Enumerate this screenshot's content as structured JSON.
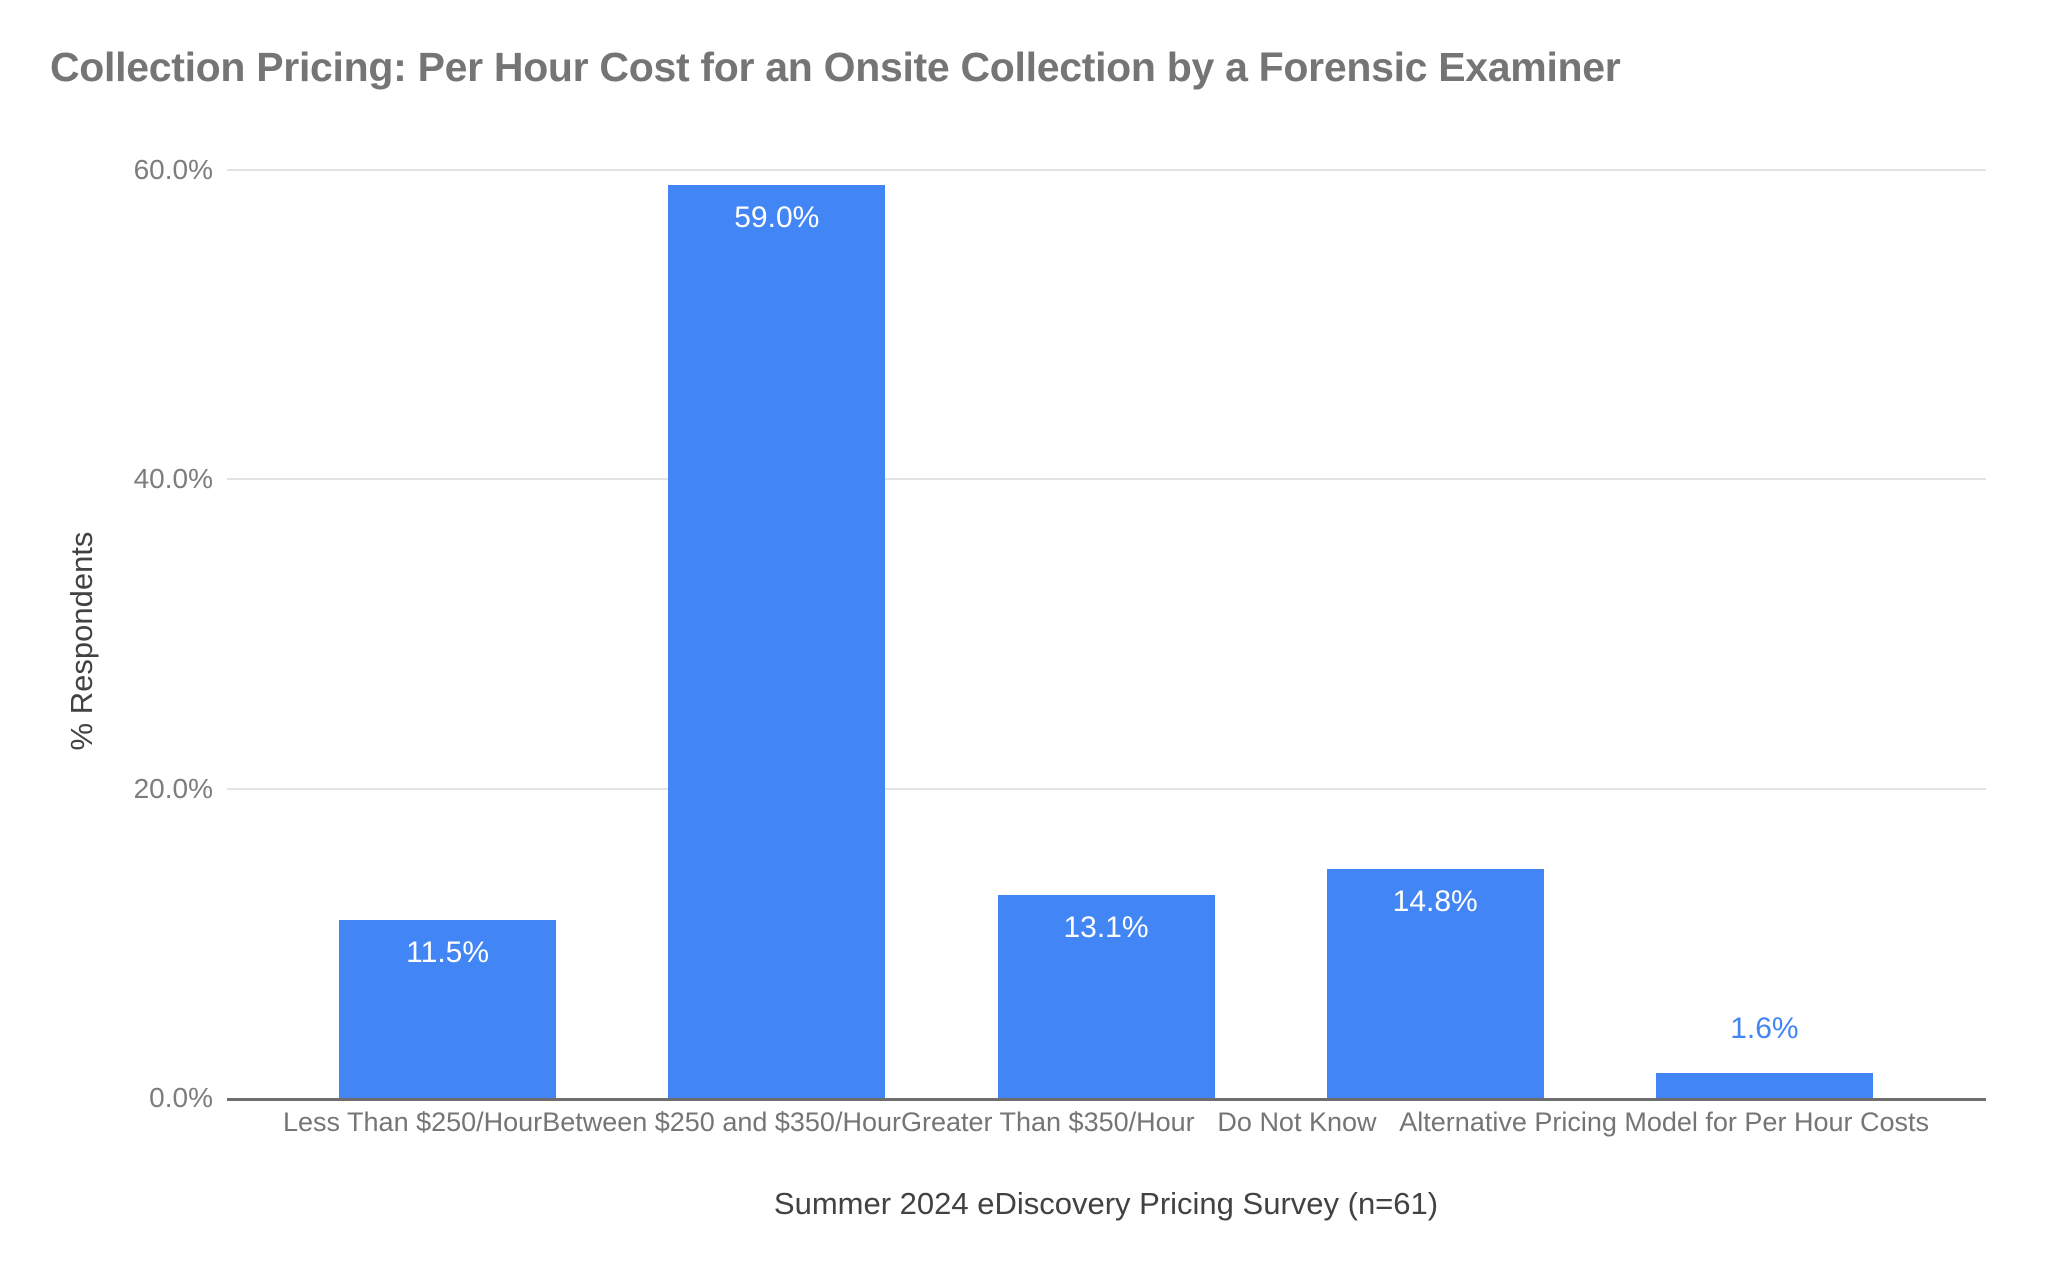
{
  "page": {
    "background": "#ffffff"
  },
  "chart_data": {
    "type": "bar",
    "title": "Collection Pricing: Per Hour Cost for an Onsite Collection by a Forensic Examiner",
    "xlabel": "Summer 2024 eDiscovery Pricing Survey (n=61)",
    "ylabel": "% Respondents",
    "categories": [
      "Less Than $250/Hour",
      "Between $250 and $350/Hour",
      "Greater Than $350/Hour",
      "Do Not Know",
      "Alternative Pricing Model for Per Hour Costs"
    ],
    "values": [
      11.5,
      59.0,
      13.1,
      14.8,
      1.6
    ],
    "value_labels": [
      "11.5%",
      "59.0%",
      "13.1%",
      "14.8%",
      "1.6%"
    ],
    "ylim": [
      0,
      60
    ],
    "yticks": [
      {
        "value": 60,
        "label": "60.0%"
      },
      {
        "value": 40,
        "label": "40.0%"
      },
      {
        "value": 20,
        "label": "20.0%"
      },
      {
        "value": 0,
        "label": "0.0%"
      }
    ],
    "grid": true,
    "legend": "none",
    "label_outside_threshold": 5,
    "colors": {
      "bar": "#4285F4",
      "title_text": "#757575",
      "tick_text": "#7d7d7d",
      "category_text": "#757575",
      "axis_title_text": "#424242",
      "gridline": "#e3e3e3",
      "axis_line": "#6e6e6e",
      "label_inside": "#ffffff",
      "label_outside": "#4285F4"
    }
  }
}
